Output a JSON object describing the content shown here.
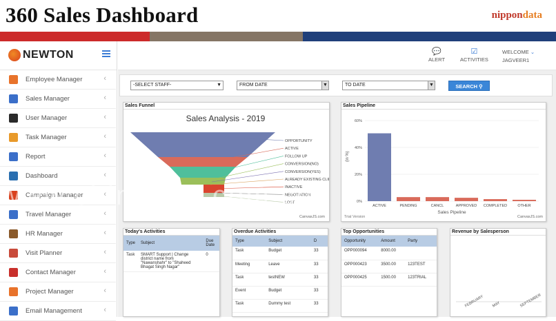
{
  "banner": {
    "title": "360 Sales Dashboard",
    "logo_main": "nippon",
    "logo_sub": "data"
  },
  "brand": {
    "name": "NEWTON"
  },
  "sidebar": {
    "items": [
      {
        "label": "Employee Manager",
        "color": "#e8732b"
      },
      {
        "label": "Sales Manager",
        "color": "#3b6fc9"
      },
      {
        "label": "User Manager",
        "color": "#2a2a2a"
      },
      {
        "label": "Task Manager",
        "color": "#e89a2b"
      },
      {
        "label": "Report",
        "color": "#3b6fc9"
      },
      {
        "label": "Dashboard",
        "color": "#2a6fb0"
      },
      {
        "label": "Campaign Manager",
        "color": "#d9411e"
      },
      {
        "label": "Travel Manager",
        "color": "#3b6fc9"
      },
      {
        "label": "HR Manager",
        "color": "#8a5a2b"
      },
      {
        "label": "Visit Planner",
        "color": "#c94b3b"
      },
      {
        "label": "Contact Manager",
        "color": "#c9302c"
      },
      {
        "label": "Project Manager",
        "color": "#e8732b"
      },
      {
        "label": "Email Management",
        "color": "#3b6fc9"
      }
    ]
  },
  "topbar": {
    "alert": "ALERT",
    "activities": "ACTIVITIES",
    "welcome": "WELCOME",
    "user": "JAGVEER1"
  },
  "filters": {
    "staff": "-SELECT STAFF-",
    "from": "FROM DATE",
    "to": "TO DATE",
    "search": "SEARCH"
  },
  "funnel": {
    "panel_title": "Sales Funnel",
    "chart_title": "Sales Analysis - 2019",
    "credit": "CanvasJS.com",
    "labels": [
      "OPPORTUNITY",
      "ACTIVE",
      "FOLLOW UP",
      "CONVERSION(NO)",
      "CONVERSION(YES)",
      "ALREADY EXISTING CLIENT",
      "INACTIVE",
      "NEGOTIATION",
      "LOST"
    ]
  },
  "pipeline": {
    "panel_title": "Sales Pipeline",
    "ylabel": "(in %)",
    "xlabel": "Sales Pipeline",
    "credit": "CanvasJS.com",
    "trial": "Trial Version"
  },
  "chart_data": {
    "type": "bar",
    "categories": [
      "ACTIVE",
      "PENDING",
      "CANCL",
      "APPROVED",
      "COMPLETED",
      "OTHER"
    ],
    "values": [
      50.5,
      3,
      3,
      2.5,
      1.5,
      1
    ],
    "ylim": [
      0,
      60
    ],
    "yticks": [
      "0%",
      "20%",
      "40%",
      "60%"
    ],
    "ylabel": "(in %)",
    "xlabel": "Sales Pipeline"
  },
  "today": {
    "title": "Today's Activities",
    "headers": [
      "Type",
      "Subject",
      "Due Date"
    ],
    "rows": [
      [
        "Task",
        "SMART Support | Change district name from \"Nawanshahr\" to \"Shaheed Bhagat Singh Nagar\"",
        "0"
      ]
    ]
  },
  "overdue": {
    "title": "Overdue Activities",
    "headers": [
      "Type",
      "Subject",
      "D"
    ],
    "rows": [
      [
        "Task",
        "Budget",
        "33"
      ],
      [
        "Meeting",
        "Leave",
        "33"
      ],
      [
        "Task",
        "testNEW",
        "33"
      ],
      [
        "Event",
        "Budget",
        "33"
      ],
      [
        "Task",
        "Dummy test",
        "33"
      ]
    ]
  },
  "opps": {
    "title": "Top Opportunities",
    "headers": [
      "Opportunity",
      "Amount",
      "Party"
    ],
    "rows": [
      [
        "OPP000094",
        "8000.00",
        ""
      ],
      [
        "OPP000423",
        "3500.00",
        "123TEST"
      ],
      [
        "OPP000425",
        "1500.00",
        "123TRIAL"
      ]
    ]
  },
  "revenue": {
    "title": "Revenue by Salesperson",
    "months": [
      "FEBRUARY",
      "MAY",
      "SEPTEMBER"
    ]
  },
  "watermark": "www.chinaapp.com.cn"
}
